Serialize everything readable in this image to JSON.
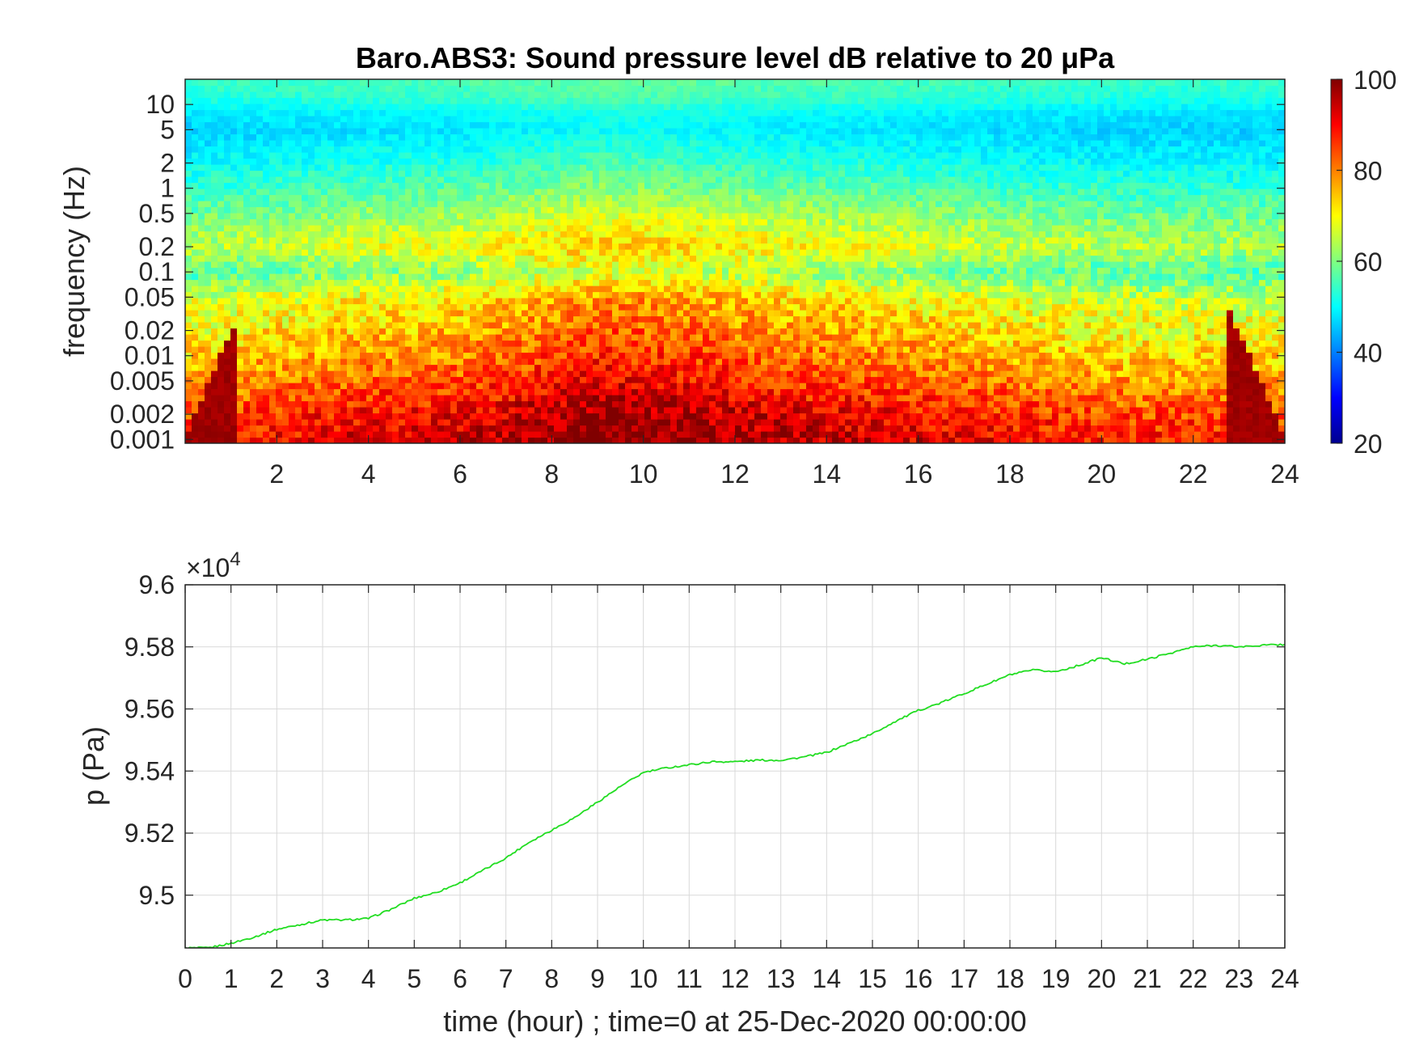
{
  "chart_data": [
    {
      "type": "heatmap",
      "title": "Baro.ABS3: Sound pressure level dB relative to 20 μPa",
      "xlabel": "",
      "ylabel": "frequency (Hz)",
      "x_scale": "linear",
      "y_scale": "log",
      "xlim": [
        0,
        24
      ],
      "ylim": [
        0.0009,
        20
      ],
      "xticks": [
        2,
        4,
        6,
        8,
        10,
        12,
        14,
        16,
        18,
        20,
        22,
        24
      ],
      "yticks": [
        0.001,
        0.002,
        0.005,
        0.01,
        0.02,
        0.05,
        0.1,
        0.2,
        0.5,
        1,
        2,
        5,
        10
      ],
      "ytick_labels": [
        "0.001",
        "0.002",
        "0.005",
        "0.01",
        "0.02",
        "0.05",
        "0.1",
        "0.2",
        "0.5",
        "1",
        "2",
        "5",
        "10"
      ],
      "colorbar": {
        "colormap": "jet",
        "range": [
          20,
          100
        ],
        "ticks": [
          20,
          40,
          60,
          80,
          100
        ]
      },
      "levels_by_frequency": [
        {
          "f": 20,
          "db": 55
        },
        {
          "f": 12,
          "db": 53
        },
        {
          "f": 8,
          "db": 49
        },
        {
          "f": 5,
          "db": 47
        },
        {
          "f": 2,
          "db": 51
        },
        {
          "f": 1,
          "db": 55
        },
        {
          "f": 0.5,
          "db": 60
        },
        {
          "f": 0.2,
          "db": 66
        },
        {
          "f": 0.1,
          "db": 58
        },
        {
          "f": 0.05,
          "db": 68
        },
        {
          "f": 0.02,
          "db": 72
        },
        {
          "f": 0.01,
          "db": 76
        },
        {
          "f": 0.005,
          "db": 80
        },
        {
          "f": 0.002,
          "db": 87
        },
        {
          "f": 0.001,
          "db": 90
        }
      ],
      "activity_by_hour": [
        {
          "t": 0,
          "db_offset": -2
        },
        {
          "t": 2,
          "db_offset": 0
        },
        {
          "t": 4,
          "db_offset": 2
        },
        {
          "t": 6,
          "db_offset": 3
        },
        {
          "t": 7.5,
          "db_offset": 6
        },
        {
          "t": 9,
          "db_offset": 9
        },
        {
          "t": 10.5,
          "db_offset": 8
        },
        {
          "t": 12,
          "db_offset": 6
        },
        {
          "t": 13.5,
          "db_offset": 4
        },
        {
          "t": 15,
          "db_offset": 3
        },
        {
          "t": 17,
          "db_offset": 1
        },
        {
          "t": 19,
          "db_offset": -1
        },
        {
          "t": 21,
          "db_offset": -2
        },
        {
          "t": 24,
          "db_offset": -2
        }
      ]
    },
    {
      "type": "line",
      "title": "",
      "xlabel": "time (hour) ; time=0 at 25-Dec-2020 00:00:00",
      "ylabel": "p (Pa)",
      "y_exponent_label": "×10",
      "y_exponent": "4",
      "xlim": [
        0,
        24
      ],
      "ylim": [
        94830,
        96000
      ],
      "xticks": [
        0,
        1,
        2,
        3,
        4,
        5,
        6,
        7,
        8,
        9,
        10,
        11,
        12,
        13,
        14,
        15,
        16,
        17,
        18,
        19,
        20,
        21,
        22,
        23,
        24
      ],
      "yticks": [
        95000,
        95200,
        95400,
        95600,
        95800,
        96000
      ],
      "ytick_labels": [
        "9.5",
        "9.52",
        "9.54",
        "9.56",
        "9.58",
        "9.6"
      ],
      "grid": true,
      "line_color": "#22dd22",
      "series": [
        {
          "x": [
            0,
            0.5,
            1,
            1.5,
            2,
            2.5,
            3,
            3.5,
            4,
            4.5,
            5,
            5.5,
            6,
            6.5,
            7,
            7.5,
            8,
            8.5,
            9,
            9.5,
            10,
            10.5,
            11,
            11.5,
            12,
            12.5,
            13,
            13.5,
            14,
            14.5,
            15,
            15.5,
            16,
            16.5,
            17,
            17.5,
            18,
            18.5,
            19,
            19.5,
            20,
            20.5,
            21,
            21.5,
            22,
            22.5,
            23,
            23.5,
            24
          ],
          "y": [
            94830,
            94830,
            94845,
            94865,
            94890,
            94905,
            94920,
            94920,
            94925,
            94955,
            94990,
            95010,
            95040,
            95080,
            95120,
            95170,
            95210,
            95250,
            95300,
            95350,
            95395,
            95410,
            95420,
            95430,
            95430,
            95435,
            95435,
            95445,
            95460,
            95490,
            95520,
            95560,
            95595,
            95620,
            95650,
            95680,
            95710,
            95725,
            95720,
            95740,
            95765,
            95745,
            95760,
            95780,
            95800,
            95805,
            95800,
            95805,
            95808
          ]
        }
      ]
    }
  ]
}
